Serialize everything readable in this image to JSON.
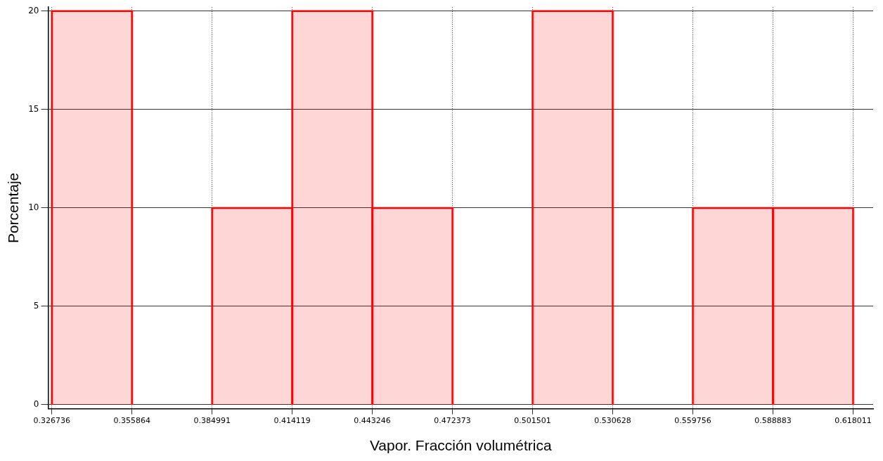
{
  "chart_data": {
    "type": "histogram",
    "xlabel": "Vapor. Fracción volumétrica",
    "ylabel": "Porcentaje",
    "bins": [
      0.326736,
      0.355864,
      0.384991,
      0.414119,
      0.443246,
      0.472373,
      0.501501,
      0.530628,
      0.559756,
      0.588883,
      0.618011
    ],
    "values": [
      20,
      0,
      10,
      20,
      10,
      0,
      20,
      0,
      10,
      10
    ],
    "color": "#ff0000",
    "xlim": [
      0.3254,
      0.6253
    ],
    "ylim": [
      -0.2,
      20.2
    ],
    "xticks": [
      0.326736,
      0.355864,
      0.384991,
      0.414119,
      0.443246,
      0.472373,
      0.501501,
      0.530628,
      0.559756,
      0.588883,
      0.618011
    ],
    "yticks": [
      0,
      5,
      10,
      15,
      20
    ],
    "grid": true
  }
}
